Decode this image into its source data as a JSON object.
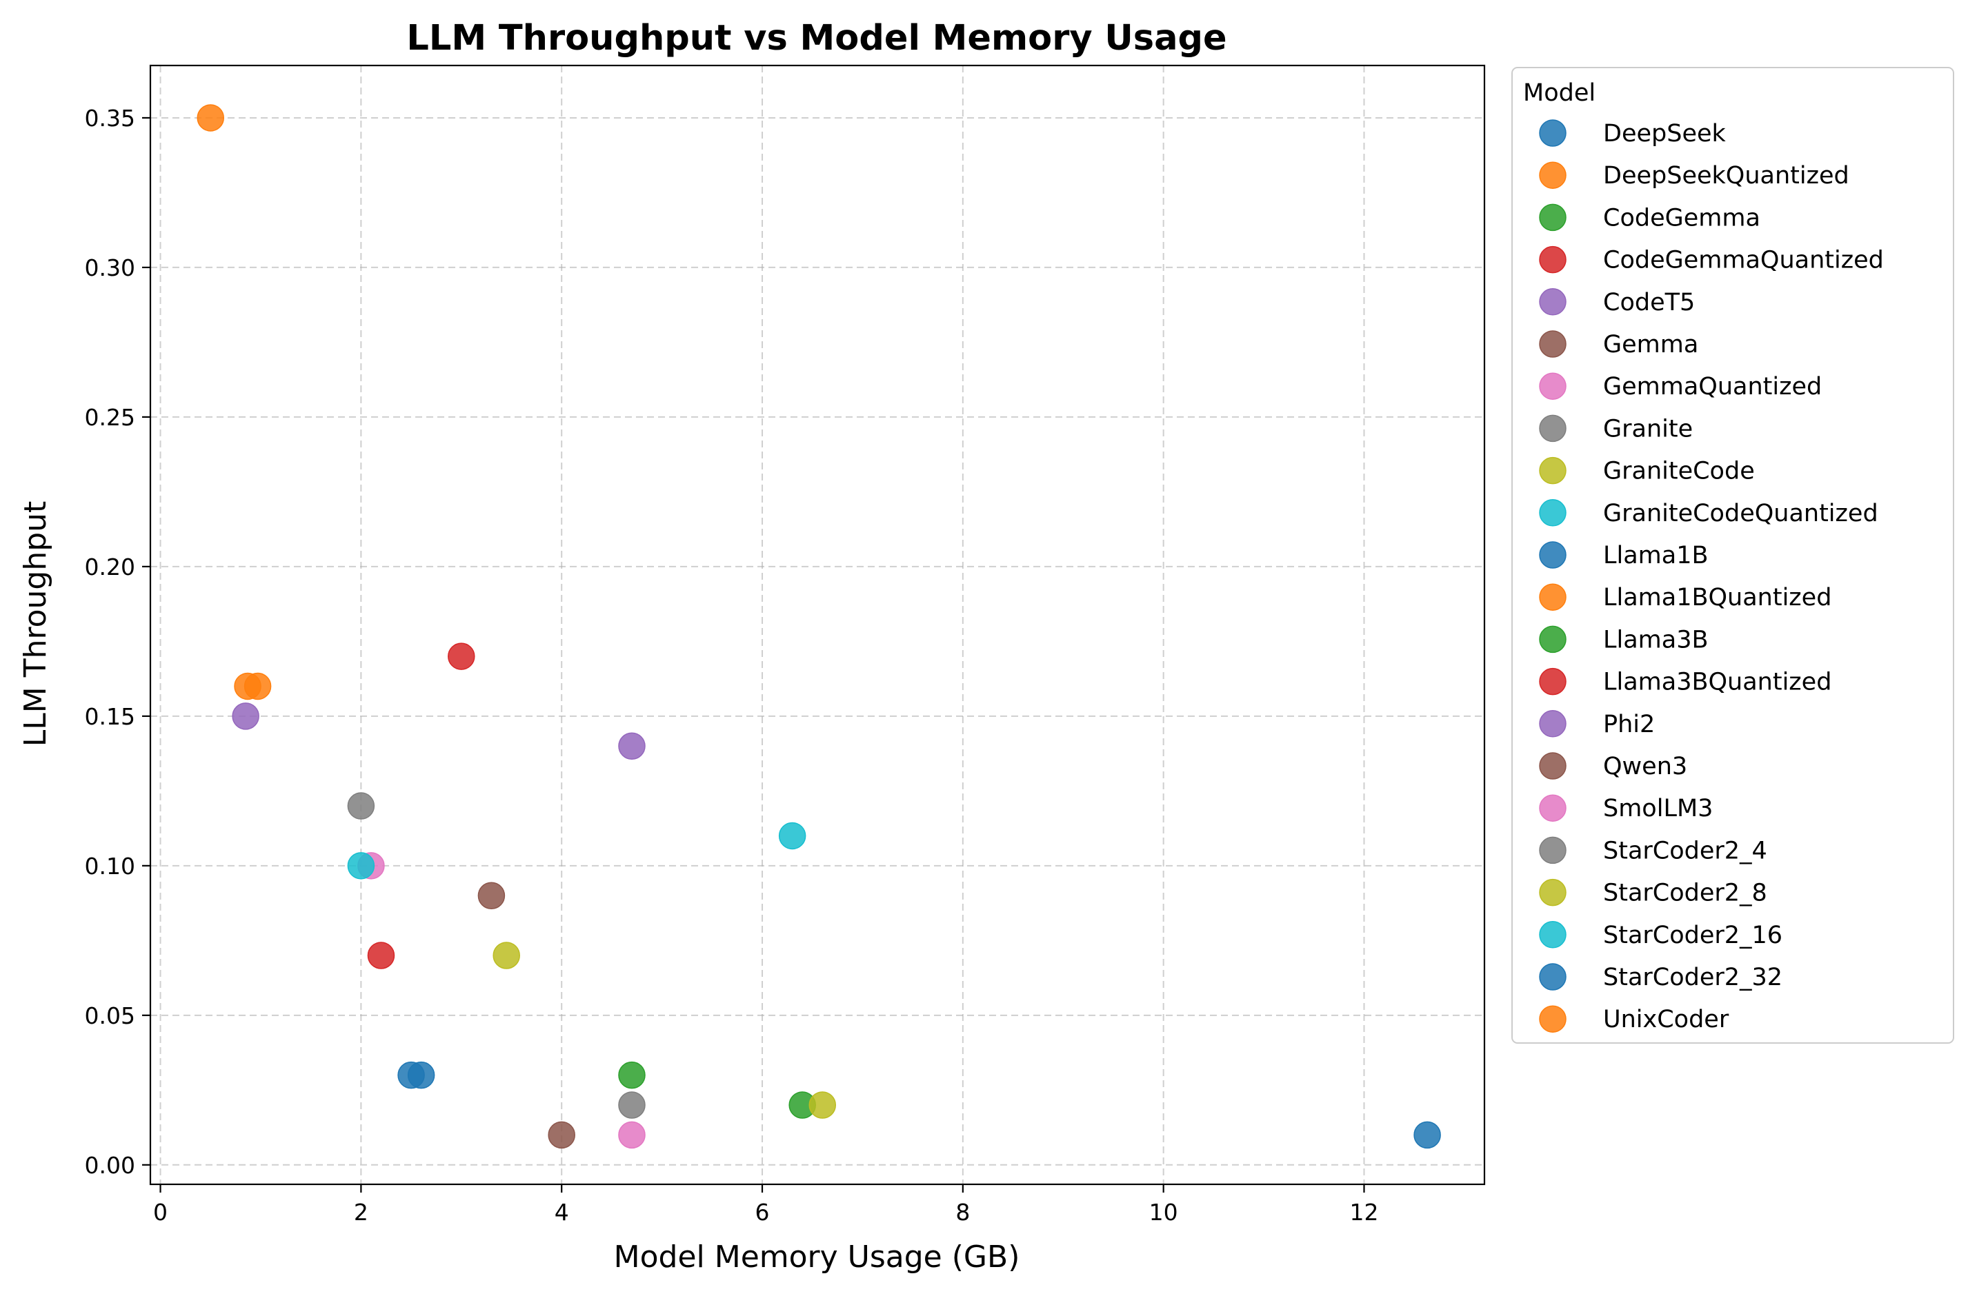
{
  "chart_data": {
    "type": "scatter",
    "title": "LLM Throughput vs Model Memory Usage",
    "xlabel": "Model Memory Usage (GB)",
    "ylabel": "LLM Throughput",
    "xlim": [
      -0.1,
      13.2
    ],
    "ylim": [
      -0.0065,
      0.3675
    ],
    "xticks": [
      0,
      2,
      4,
      6,
      8,
      10,
      12
    ],
    "xtick_labels": [
      "0",
      "2",
      "4",
      "6",
      "8",
      "10",
      "12"
    ],
    "yticks": [
      0.0,
      0.05,
      0.1,
      0.15,
      0.2,
      0.25,
      0.3,
      0.35
    ],
    "ytick_labels": [
      "0.00",
      "0.05",
      "0.10",
      "0.15",
      "0.20",
      "0.25",
      "0.30",
      "0.35"
    ],
    "grid": true,
    "legend": {
      "title": "Model",
      "placement": "outside-right"
    },
    "series": [
      {
        "name": "DeepSeek",
        "color": "#1f77b4",
        "points": [
          [
            2.6,
            0.03
          ]
        ]
      },
      {
        "name": "DeepSeekQuantized",
        "color": "#ff7f0e",
        "points": [
          [
            0.97,
            0.16
          ]
        ]
      },
      {
        "name": "CodeGemma",
        "color": "#2ca02c",
        "points": [
          [
            6.4,
            0.02
          ]
        ]
      },
      {
        "name": "CodeGemmaQuantized",
        "color": "#d62728",
        "points": [
          [
            2.2,
            0.07
          ]
        ]
      },
      {
        "name": "CodeT5",
        "color": "#9467bd",
        "points": [
          [
            0.85,
            0.15
          ]
        ]
      },
      {
        "name": "Gemma",
        "color": "#8c564b",
        "points": [
          [
            4.0,
            0.01
          ]
        ]
      },
      {
        "name": "GemmaQuantized",
        "color": "#e377c2",
        "points": [
          [
            2.1,
            0.1
          ]
        ]
      },
      {
        "name": "Granite",
        "color": "#7f7f7f",
        "points": [
          [
            4.7,
            0.02
          ]
        ]
      },
      {
        "name": "GraniteCode",
        "color": "#bcbd22",
        "points": [
          [
            6.6,
            0.02
          ]
        ]
      },
      {
        "name": "GraniteCodeQuantized",
        "color": "#17becf",
        "points": [
          [
            2.0,
            0.1
          ]
        ]
      },
      {
        "name": "Llama1B",
        "color": "#1f77b4",
        "points": [
          [
            2.5,
            0.03
          ]
        ]
      },
      {
        "name": "Llama1BQuantized",
        "color": "#ff7f0e",
        "points": [
          [
            0.87,
            0.16
          ]
        ]
      },
      {
        "name": "Llama3B",
        "color": "#2ca02c",
        "points": [
          [
            4.7,
            0.03
          ]
        ]
      },
      {
        "name": "Llama3BQuantized",
        "color": "#d62728",
        "points": [
          [
            3.0,
            0.17
          ]
        ]
      },
      {
        "name": "Phi2",
        "color": "#9467bd",
        "points": [
          [
            4.7,
            0.14
          ]
        ]
      },
      {
        "name": "Qwen3",
        "color": "#8c564b",
        "points": [
          [
            3.3,
            0.09
          ]
        ]
      },
      {
        "name": "SmolLM3",
        "color": "#e377c2",
        "points": [
          [
            4.7,
            0.01
          ]
        ]
      },
      {
        "name": "StarCoder2_4",
        "color": "#7f7f7f",
        "points": [
          [
            2.0,
            0.12
          ]
        ]
      },
      {
        "name": "StarCoder2_8",
        "color": "#bcbd22",
        "points": [
          [
            3.45,
            0.07
          ]
        ]
      },
      {
        "name": "StarCoder2_16",
        "color": "#17becf",
        "points": [
          [
            6.3,
            0.11
          ]
        ]
      },
      {
        "name": "StarCoder2_32",
        "color": "#1f77b4",
        "points": [
          [
            12.63,
            0.01
          ]
        ]
      },
      {
        "name": "UnixCoder",
        "color": "#ff7f0e",
        "points": [
          [
            0.5,
            0.35
          ]
        ]
      }
    ]
  }
}
